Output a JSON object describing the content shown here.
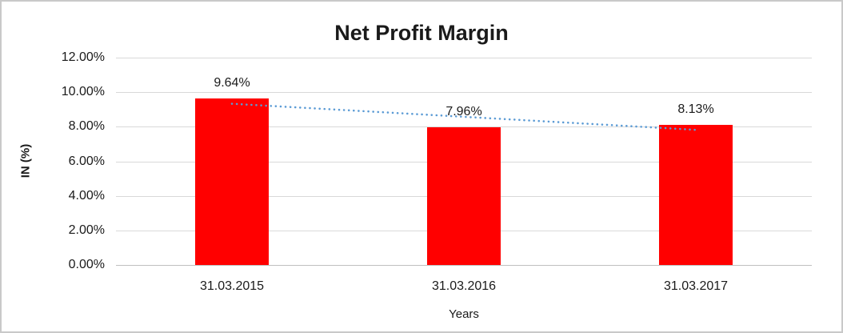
{
  "chart_data": {
    "type": "bar",
    "title": "Net Profit Margin",
    "xlabel": "Years",
    "ylabel": "IN (%)",
    "categories": [
      "31.03.2015",
      "31.03.2016",
      "31.03.2017"
    ],
    "values": [
      9.64,
      7.96,
      8.13
    ],
    "data_labels": [
      "9.64%",
      "7.96%",
      "8.13%"
    ],
    "unit": "percent",
    "ylim": [
      0,
      12
    ],
    "grid": true,
    "legend": "none",
    "y_ticks": [
      {
        "value": 0,
        "label": "0.00%"
      },
      {
        "value": 2,
        "label": "2.00%"
      },
      {
        "value": 4,
        "label": "4.00%"
      },
      {
        "value": 6,
        "label": "6.00%"
      },
      {
        "value": 8,
        "label": "8.00%"
      },
      {
        "value": 10,
        "label": "10.00%"
      },
      {
        "value": 12,
        "label": "12.00%"
      }
    ],
    "trendline": {
      "type": "linear",
      "style": "dotted",
      "start_value": 9.33,
      "end_value": 7.82
    },
    "colors": {
      "bar": "#ff0000",
      "trendline": "#5b9bd5",
      "gridline": "#d9d9d9",
      "axis_line": "#bfbfbf",
      "text": "#1a1a1a"
    }
  }
}
